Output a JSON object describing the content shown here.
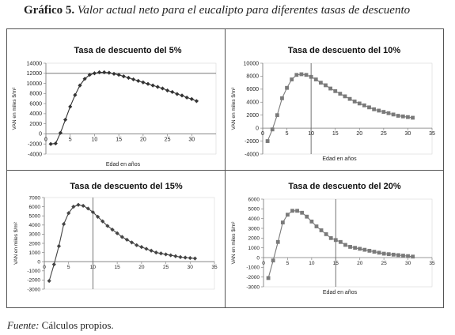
{
  "figure": {
    "label": "Gráfico 5.",
    "caption": "Valor actual neto para el eucalipto para diferentes tasas de descuento",
    "source_label": "Fuente:",
    "source_text": "Cálculos propios."
  },
  "chart_data": [
    {
      "type": "line",
      "title": "Tasa de descuento del 5%",
      "xlabel": "Edad en años",
      "ylabel": "VAN en miles $/m²",
      "xlim": [
        0,
        35
      ],
      "ylim": [
        -4000,
        14000
      ],
      "yticks": [
        -4000,
        -2000,
        0,
        2000,
        4000,
        6000,
        8000,
        10000,
        12000,
        14000
      ],
      "ytick_labels": [
        "-4000",
        "-2000",
        "0",
        "2000",
        "4000",
        "6000",
        "8000",
        "10000",
        "12000",
        "14000"
      ],
      "xticks": [
        0,
        5,
        10,
        15,
        20,
        25,
        30
      ],
      "xtick_labels": [
        "0",
        "5",
        "10",
        "15",
        "20",
        "25",
        "30"
      ],
      "marker": "diamond",
      "color": "#333333",
      "ref_h": 12000,
      "series": [
        {
          "x": [
            1,
            2,
            3,
            4,
            5,
            6,
            7,
            8,
            9,
            10,
            11,
            12,
            13,
            14,
            15,
            16,
            17,
            18,
            19,
            20,
            21,
            22,
            23,
            24,
            25,
            26,
            27,
            28,
            29,
            30,
            31
          ],
          "values": [
            -2000,
            -1900,
            200,
            2800,
            5400,
            7700,
            9600,
            10900,
            11700,
            12000,
            12200,
            12200,
            12100,
            11900,
            11700,
            11400,
            11100,
            10800,
            10500,
            10200,
            9900,
            9600,
            9300,
            9000,
            8600,
            8300,
            7900,
            7600,
            7200,
            6900,
            6500
          ]
        }
      ]
    },
    {
      "type": "line",
      "title": "Tasa de descuento del 10%",
      "xlabel": "Edad en años",
      "ylabel": "VAN en miles $/m²",
      "xlim": [
        0,
        35
      ],
      "ylim": [
        -4000,
        10000
      ],
      "yticks": [
        -4000,
        -2000,
        0,
        2000,
        4000,
        6000,
        8000,
        10000
      ],
      "ytick_labels": [
        "-4000",
        "-2000",
        "0",
        "2000",
        "4000",
        "6000",
        "8000",
        "10000"
      ],
      "xticks": [
        0,
        5,
        10,
        15,
        20,
        25,
        30,
        35
      ],
      "xtick_labels": [
        "0",
        "5",
        "10",
        "15",
        "20",
        "25",
        "30",
        "35"
      ],
      "marker": "square",
      "color": "#7a7a7a",
      "ref_v": 10,
      "series": [
        {
          "x": [
            1,
            2,
            3,
            4,
            5,
            6,
            7,
            8,
            9,
            10,
            11,
            12,
            13,
            14,
            15,
            16,
            17,
            18,
            19,
            20,
            21,
            22,
            23,
            24,
            25,
            26,
            27,
            28,
            29,
            30,
            31
          ],
          "values": [
            -2000,
            -200,
            2000,
            4600,
            6200,
            7500,
            8200,
            8300,
            8200,
            7900,
            7500,
            7000,
            6600,
            6100,
            5700,
            5300,
            4900,
            4500,
            4100,
            3800,
            3500,
            3200,
            2900,
            2700,
            2500,
            2300,
            2100,
            1900,
            1800,
            1700,
            1600
          ]
        }
      ]
    },
    {
      "type": "line",
      "title": "Tasa de descuento del 15%",
      "xlabel": "",
      "ylabel": "VAN en miles $/m²",
      "xlim": [
        0,
        35
      ],
      "ylim": [
        -3000,
        7000
      ],
      "yticks": [
        -3000,
        -2000,
        -1000,
        0,
        1000,
        2000,
        3000,
        4000,
        5000,
        6000,
        7000
      ],
      "ytick_labels": [
        "-3000",
        "-2000",
        "-1000",
        "0",
        "1000",
        "2000",
        "3000",
        "4000",
        "5000",
        "6000",
        "7000"
      ],
      "xticks": [
        0,
        5,
        10,
        15,
        20,
        25,
        30,
        35
      ],
      "xtick_labels": [
        "0",
        "5",
        "10",
        "15",
        "20",
        "25",
        "30",
        "35"
      ],
      "marker": "diamond",
      "color": "#444444",
      "ref_v": 10,
      "series": [
        {
          "x": [
            1,
            2,
            3,
            4,
            5,
            6,
            7,
            8,
            9,
            10,
            11,
            12,
            13,
            14,
            15,
            16,
            17,
            18,
            19,
            20,
            21,
            22,
            23,
            24,
            25,
            26,
            27,
            28,
            29,
            30,
            31
          ],
          "values": [
            -2100,
            -300,
            1700,
            4100,
            5300,
            6000,
            6200,
            6100,
            5800,
            5400,
            4900,
            4400,
            3900,
            3500,
            3100,
            2700,
            2400,
            2100,
            1800,
            1600,
            1400,
            1200,
            1000,
            900,
            800,
            700,
            600,
            500,
            450,
            400,
            350
          ]
        }
      ]
    },
    {
      "type": "line",
      "title": "Tasa de descuento del 20%",
      "xlabel": "Edad en años",
      "ylabel": "VAN en miles $/m²",
      "xlim": [
        0,
        35
      ],
      "ylim": [
        -3000,
        6000
      ],
      "yticks": [
        -3000,
        -2000,
        -1000,
        0,
        1000,
        2000,
        3000,
        4000,
        5000,
        6000
      ],
      "ytick_labels": [
        "-3000",
        "-2000",
        "-1000",
        "0",
        "1000",
        "2000",
        "3000",
        "4000",
        "5000",
        "6000"
      ],
      "xticks": [
        0,
        5,
        10,
        15,
        20,
        25,
        30,
        35
      ],
      "xtick_labels": [
        "0",
        "5",
        "10",
        "15",
        "20",
        "25",
        "30",
        "35"
      ],
      "marker": "square",
      "color": "#7a7a7a",
      "ref_v": 15,
      "series": [
        {
          "x": [
            1,
            2,
            3,
            4,
            5,
            6,
            7,
            8,
            9,
            10,
            11,
            12,
            13,
            14,
            15,
            16,
            17,
            18,
            19,
            20,
            21,
            22,
            23,
            24,
            25,
            26,
            27,
            28,
            29,
            30,
            31
          ],
          "values": [
            -2100,
            -300,
            1600,
            3600,
            4400,
            4800,
            4800,
            4600,
            4200,
            3700,
            3200,
            2800,
            2400,
            2000,
            1800,
            1600,
            1300,
            1100,
            1000,
            900,
            800,
            700,
            600,
            500,
            400,
            350,
            300,
            250,
            200,
            150,
            100
          ]
        }
      ]
    }
  ]
}
